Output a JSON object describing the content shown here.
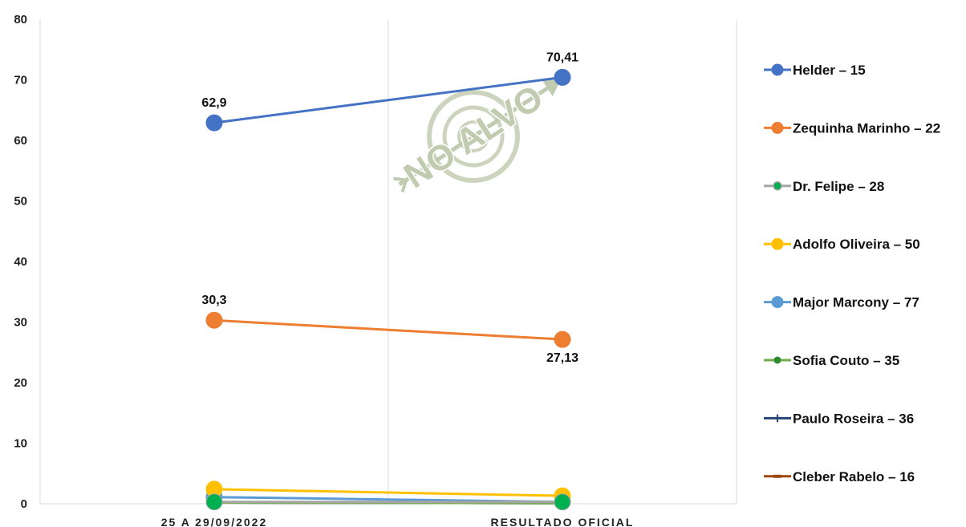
{
  "chart_data": {
    "type": "line",
    "categories": [
      "25 A 29/09/2022",
      "RESULTADO OFICIAL"
    ],
    "ylim": [
      0,
      80
    ],
    "yticks": [
      "0",
      "10",
      "20",
      "30",
      "40",
      "50",
      "60",
      "70",
      "80"
    ],
    "grid": "vertical category dividers only",
    "legend_position": "right",
    "watermark": "NO ALVO",
    "series": [
      {
        "name": "Helder – 15",
        "values": [
          62.9,
          70.41
        ],
        "labels": [
          "62,9",
          "70,41"
        ],
        "color": "#4472C4",
        "marker": "circle"
      },
      {
        "name": "Zequinha Marinho – 22",
        "values": [
          30.3,
          27.13
        ],
        "labels": [
          "30,3",
          "27,13"
        ],
        "color": "#ED7D31",
        "marker": "circle"
      },
      {
        "name": "Dr. Felipe – 28",
        "values": [
          0.3,
          0.3
        ],
        "labels": [
          "",
          ""
        ],
        "color": "#A5A5A5",
        "marker": "circle",
        "marker_color": "#00B050"
      },
      {
        "name": "Adolfo Oliveira – 50",
        "values": [
          2.4,
          1.3
        ],
        "labels": [
          "",
          ""
        ],
        "color": "#FFC000",
        "marker": "circle"
      },
      {
        "name": "Major Marcony – 77",
        "values": [
          1.1,
          0.3
        ],
        "labels": [
          "",
          ""
        ],
        "color": "#5B9BD5",
        "marker": "circle"
      },
      {
        "name": "Sofia Couto – 35",
        "values": [
          0.2,
          0.1
        ],
        "labels": [
          "",
          ""
        ],
        "color": "#70AD47",
        "marker": "small-circle",
        "marker_color": "#2E8B2E"
      },
      {
        "name": "Paulo Roseira – 36",
        "values": [
          0.2,
          0.1
        ],
        "labels": [
          "",
          ""
        ],
        "color": "#264478",
        "marker": "plus"
      },
      {
        "name": "Cleber Rabelo – 16",
        "values": [
          0.2,
          0.1
        ],
        "labels": [
          "",
          ""
        ],
        "color": "#9E480E",
        "marker": "dash"
      }
    ]
  }
}
